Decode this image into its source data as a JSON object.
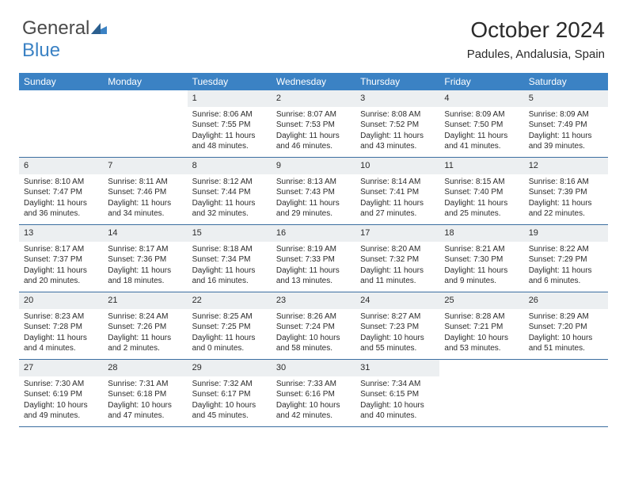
{
  "brand": {
    "part1": "General",
    "part2": "Blue"
  },
  "title": "October 2024",
  "location": "Padules, Andalusia, Spain",
  "colors": {
    "header_bg": "#3b82c4",
    "daynum_bg": "#eceff1",
    "row_border": "#3b6ea0",
    "text": "#2b2b2b"
  },
  "weekdays": [
    "Sunday",
    "Monday",
    "Tuesday",
    "Wednesday",
    "Thursday",
    "Friday",
    "Saturday"
  ],
  "weeks": [
    [
      null,
      null,
      {
        "n": "1",
        "sr": "Sunrise: 8:06 AM",
        "ss": "Sunset: 7:55 PM",
        "d1": "Daylight: 11 hours",
        "d2": "and 48 minutes."
      },
      {
        "n": "2",
        "sr": "Sunrise: 8:07 AM",
        "ss": "Sunset: 7:53 PM",
        "d1": "Daylight: 11 hours",
        "d2": "and 46 minutes."
      },
      {
        "n": "3",
        "sr": "Sunrise: 8:08 AM",
        "ss": "Sunset: 7:52 PM",
        "d1": "Daylight: 11 hours",
        "d2": "and 43 minutes."
      },
      {
        "n": "4",
        "sr": "Sunrise: 8:09 AM",
        "ss": "Sunset: 7:50 PM",
        "d1": "Daylight: 11 hours",
        "d2": "and 41 minutes."
      },
      {
        "n": "5",
        "sr": "Sunrise: 8:09 AM",
        "ss": "Sunset: 7:49 PM",
        "d1": "Daylight: 11 hours",
        "d2": "and 39 minutes."
      }
    ],
    [
      {
        "n": "6",
        "sr": "Sunrise: 8:10 AM",
        "ss": "Sunset: 7:47 PM",
        "d1": "Daylight: 11 hours",
        "d2": "and 36 minutes."
      },
      {
        "n": "7",
        "sr": "Sunrise: 8:11 AM",
        "ss": "Sunset: 7:46 PM",
        "d1": "Daylight: 11 hours",
        "d2": "and 34 minutes."
      },
      {
        "n": "8",
        "sr": "Sunrise: 8:12 AM",
        "ss": "Sunset: 7:44 PM",
        "d1": "Daylight: 11 hours",
        "d2": "and 32 minutes."
      },
      {
        "n": "9",
        "sr": "Sunrise: 8:13 AM",
        "ss": "Sunset: 7:43 PM",
        "d1": "Daylight: 11 hours",
        "d2": "and 29 minutes."
      },
      {
        "n": "10",
        "sr": "Sunrise: 8:14 AM",
        "ss": "Sunset: 7:41 PM",
        "d1": "Daylight: 11 hours",
        "d2": "and 27 minutes."
      },
      {
        "n": "11",
        "sr": "Sunrise: 8:15 AM",
        "ss": "Sunset: 7:40 PM",
        "d1": "Daylight: 11 hours",
        "d2": "and 25 minutes."
      },
      {
        "n": "12",
        "sr": "Sunrise: 8:16 AM",
        "ss": "Sunset: 7:39 PM",
        "d1": "Daylight: 11 hours",
        "d2": "and 22 minutes."
      }
    ],
    [
      {
        "n": "13",
        "sr": "Sunrise: 8:17 AM",
        "ss": "Sunset: 7:37 PM",
        "d1": "Daylight: 11 hours",
        "d2": "and 20 minutes."
      },
      {
        "n": "14",
        "sr": "Sunrise: 8:17 AM",
        "ss": "Sunset: 7:36 PM",
        "d1": "Daylight: 11 hours",
        "d2": "and 18 minutes."
      },
      {
        "n": "15",
        "sr": "Sunrise: 8:18 AM",
        "ss": "Sunset: 7:34 PM",
        "d1": "Daylight: 11 hours",
        "d2": "and 16 minutes."
      },
      {
        "n": "16",
        "sr": "Sunrise: 8:19 AM",
        "ss": "Sunset: 7:33 PM",
        "d1": "Daylight: 11 hours",
        "d2": "and 13 minutes."
      },
      {
        "n": "17",
        "sr": "Sunrise: 8:20 AM",
        "ss": "Sunset: 7:32 PM",
        "d1": "Daylight: 11 hours",
        "d2": "and 11 minutes."
      },
      {
        "n": "18",
        "sr": "Sunrise: 8:21 AM",
        "ss": "Sunset: 7:30 PM",
        "d1": "Daylight: 11 hours",
        "d2": "and 9 minutes."
      },
      {
        "n": "19",
        "sr": "Sunrise: 8:22 AM",
        "ss": "Sunset: 7:29 PM",
        "d1": "Daylight: 11 hours",
        "d2": "and 6 minutes."
      }
    ],
    [
      {
        "n": "20",
        "sr": "Sunrise: 8:23 AM",
        "ss": "Sunset: 7:28 PM",
        "d1": "Daylight: 11 hours",
        "d2": "and 4 minutes."
      },
      {
        "n": "21",
        "sr": "Sunrise: 8:24 AM",
        "ss": "Sunset: 7:26 PM",
        "d1": "Daylight: 11 hours",
        "d2": "and 2 minutes."
      },
      {
        "n": "22",
        "sr": "Sunrise: 8:25 AM",
        "ss": "Sunset: 7:25 PM",
        "d1": "Daylight: 11 hours",
        "d2": "and 0 minutes."
      },
      {
        "n": "23",
        "sr": "Sunrise: 8:26 AM",
        "ss": "Sunset: 7:24 PM",
        "d1": "Daylight: 10 hours",
        "d2": "and 58 minutes."
      },
      {
        "n": "24",
        "sr": "Sunrise: 8:27 AM",
        "ss": "Sunset: 7:23 PM",
        "d1": "Daylight: 10 hours",
        "d2": "and 55 minutes."
      },
      {
        "n": "25",
        "sr": "Sunrise: 8:28 AM",
        "ss": "Sunset: 7:21 PM",
        "d1": "Daylight: 10 hours",
        "d2": "and 53 minutes."
      },
      {
        "n": "26",
        "sr": "Sunrise: 8:29 AM",
        "ss": "Sunset: 7:20 PM",
        "d1": "Daylight: 10 hours",
        "d2": "and 51 minutes."
      }
    ],
    [
      {
        "n": "27",
        "sr": "Sunrise: 7:30 AM",
        "ss": "Sunset: 6:19 PM",
        "d1": "Daylight: 10 hours",
        "d2": "and 49 minutes."
      },
      {
        "n": "28",
        "sr": "Sunrise: 7:31 AM",
        "ss": "Sunset: 6:18 PM",
        "d1": "Daylight: 10 hours",
        "d2": "and 47 minutes."
      },
      {
        "n": "29",
        "sr": "Sunrise: 7:32 AM",
        "ss": "Sunset: 6:17 PM",
        "d1": "Daylight: 10 hours",
        "d2": "and 45 minutes."
      },
      {
        "n": "30",
        "sr": "Sunrise: 7:33 AM",
        "ss": "Sunset: 6:16 PM",
        "d1": "Daylight: 10 hours",
        "d2": "and 42 minutes."
      },
      {
        "n": "31",
        "sr": "Sunrise: 7:34 AM",
        "ss": "Sunset: 6:15 PM",
        "d1": "Daylight: 10 hours",
        "d2": "and 40 minutes."
      },
      null,
      null
    ]
  ]
}
